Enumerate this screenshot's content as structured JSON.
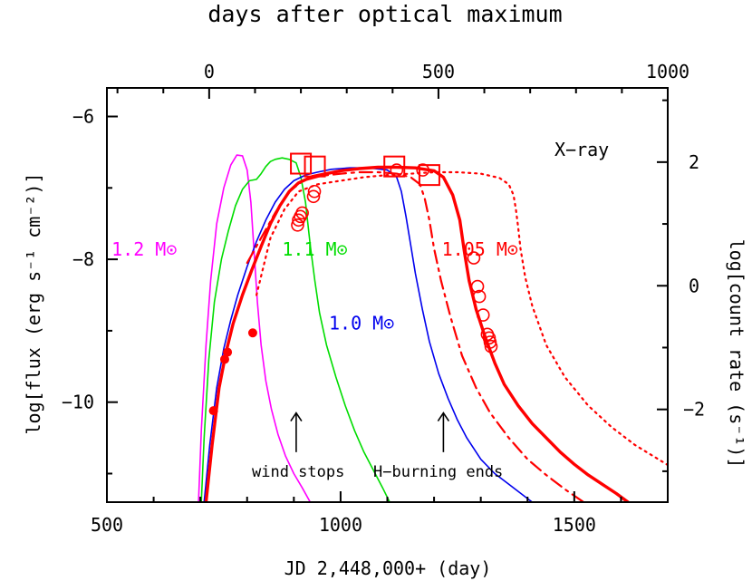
{
  "chart_data": {
    "type": "line",
    "title": "",
    "xlabel": "JD 2,448,000+ (day)",
    "x2label": "days after optical maximum",
    "ylabel": "log[flux (erg s⁻¹ cm⁻²)]",
    "y2label": "log[count rate (s⁻¹)]",
    "xlim": [
      500,
      1700
    ],
    "ylim": [
      -11.4,
      -5.6
    ],
    "x2lim": [
      -223,
      1000
    ],
    "y2lim": [
      -3.5,
      3.2
    ],
    "x_ticks": [
      500,
      1000,
      1500
    ],
    "y_ticks": [
      -6,
      -8,
      -10
    ],
    "x2_ticks": [
      0,
      500,
      1000
    ],
    "y2_ticks": [
      2,
      0,
      -2
    ],
    "x_tick_labels": [
      "500",
      "1000",
      "1500"
    ],
    "y_tick_labels": [
      "−6",
      "−8",
      "−10"
    ],
    "x2_tick_labels": [
      "0",
      "500",
      "1000"
    ],
    "y2_tick_labels": [
      "2",
      "0",
      "−2"
    ],
    "annotations": {
      "xray": "X−ray",
      "wind_stops": "wind stops",
      "h_burning_ends": "H−burning ends"
    },
    "arrows": [
      {
        "x": 905,
        "y_from": -10.7,
        "y_to": -10.15
      },
      {
        "x": 1220,
        "y_from": -10.7,
        "y_to": -10.15
      }
    ],
    "model_labels": [
      {
        "text": "1.2 M⊙",
        "color": "#ff00ff",
        "x": 650,
        "y": -7.95
      },
      {
        "text": "1.1 M⊙",
        "color": "#00dd00",
        "x": 1015,
        "y": -7.95
      },
      {
        "text": "1.0 M⊙",
        "color": "#0000ee",
        "x": 1115,
        "y": -8.98
      },
      {
        "text": "1.05 M⊙",
        "color": "#ff0000",
        "x": 1380,
        "y": -7.95
      }
    ],
    "series": [
      {
        "name": "1.2 M⊙",
        "color": "#ff00ff",
        "width": 1.6,
        "dash": "",
        "x": [
          696,
          702,
          712,
          722,
          735,
          750,
          765,
          778,
          790,
          800,
          808,
          815,
          822,
          830,
          840,
          852,
          866,
          882,
          900,
          918,
          935
        ],
        "y": [
          -11.4,
          -10.4,
          -9.2,
          -8.3,
          -7.5,
          -7.0,
          -6.68,
          -6.54,
          -6.55,
          -6.75,
          -7.2,
          -7.9,
          -8.6,
          -9.2,
          -9.7,
          -10.1,
          -10.45,
          -10.75,
          -11.0,
          -11.2,
          -11.4
        ]
      },
      {
        "name": "1.1 M⊙",
        "color": "#00dd00",
        "width": 1.6,
        "dash": "",
        "x": [
          702,
          708,
          718,
          730,
          745,
          760,
          775,
          790,
          805,
          820,
          830,
          840,
          850,
          860,
          875,
          890,
          905,
          915,
          925,
          935,
          945,
          955,
          970,
          990,
          1010,
          1030,
          1050,
          1070,
          1090,
          1105
        ],
        "y": [
          -11.4,
          -10.5,
          -9.4,
          -8.6,
          -8.0,
          -7.6,
          -7.25,
          -7.02,
          -6.9,
          -6.88,
          -6.8,
          -6.7,
          -6.63,
          -6.6,
          -6.58,
          -6.6,
          -6.65,
          -6.85,
          -7.2,
          -7.8,
          -8.3,
          -8.75,
          -9.2,
          -9.65,
          -10.05,
          -10.4,
          -10.7,
          -10.95,
          -11.2,
          -11.4
        ]
      },
      {
        "name": "1.0 M⊙",
        "color": "#0000ee",
        "width": 1.6,
        "dash": "",
        "x": [
          708,
          720,
          735,
          750,
          765,
          780,
          800,
          820,
          840,
          860,
          880,
          900,
          925,
          950,
          980,
          1020,
          1060,
          1100,
          1120,
          1130,
          1140,
          1150,
          1160,
          1175,
          1190,
          1210,
          1230,
          1250,
          1270,
          1300,
          1330,
          1360,
          1390,
          1410
        ],
        "y": [
          -11.4,
          -10.6,
          -9.8,
          -9.25,
          -8.85,
          -8.5,
          -8.1,
          -7.75,
          -7.45,
          -7.2,
          -7.02,
          -6.9,
          -6.82,
          -6.78,
          -6.74,
          -6.72,
          -6.72,
          -6.75,
          -6.85,
          -7.05,
          -7.4,
          -7.8,
          -8.2,
          -8.7,
          -9.15,
          -9.6,
          -9.95,
          -10.25,
          -10.5,
          -10.8,
          -11.0,
          -11.15,
          -11.3,
          -11.4
        ]
      },
      {
        "name": "1.05 M⊙",
        "color": "#ff0000",
        "width": 3.4,
        "dash": "",
        "x": [
          712,
          725,
          740,
          755,
          770,
          790,
          810,
          830,
          850,
          870,
          890,
          910,
          940,
          970,
          1000,
          1040,
          1080,
          1120,
          1160,
          1200,
          1220,
          1240,
          1255,
          1265,
          1275,
          1290,
          1310,
          1330,
          1350,
          1380,
          1410,
          1440,
          1470,
          1500,
          1530,
          1560,
          1590,
          1615
        ],
        "y": [
          -11.4,
          -10.6,
          -9.8,
          -9.3,
          -8.9,
          -8.5,
          -8.15,
          -7.82,
          -7.5,
          -7.25,
          -7.05,
          -6.93,
          -6.84,
          -6.8,
          -6.76,
          -6.73,
          -6.71,
          -6.71,
          -6.72,
          -6.76,
          -6.85,
          -7.1,
          -7.45,
          -7.9,
          -8.3,
          -8.7,
          -9.1,
          -9.45,
          -9.75,
          -10.05,
          -10.3,
          -10.5,
          -10.7,
          -10.87,
          -11.02,
          -11.15,
          -11.28,
          -11.4
        ]
      },
      {
        "name": "",
        "color": "#ff0000",
        "width": 2.2,
        "dash": "14 6 3 6",
        "x": [
          800,
          830,
          860,
          890,
          920,
          960,
          1000,
          1040,
          1080,
          1120,
          1150,
          1170,
          1180,
          1190,
          1200,
          1215,
          1235,
          1260,
          1290,
          1320,
          1360,
          1400,
          1440,
          1480,
          1520
        ],
        "y": [
          -8.05,
          -7.7,
          -7.35,
          -7.05,
          -6.9,
          -6.83,
          -6.8,
          -6.78,
          -6.78,
          -6.8,
          -6.85,
          -6.95,
          -7.15,
          -7.45,
          -7.85,
          -8.3,
          -8.8,
          -9.35,
          -9.8,
          -10.15,
          -10.5,
          -10.8,
          -11.02,
          -11.22,
          -11.4
        ]
      },
      {
        "name": "",
        "color": "#ff0000",
        "width": 2.2,
        "dash": "2 5",
        "x": [
          820,
          850,
          880,
          910,
          950,
          1000,
          1050,
          1100,
          1150,
          1200,
          1250,
          1300,
          1340,
          1360,
          1370,
          1375,
          1380,
          1385,
          1395,
          1410,
          1440,
          1480,
          1530,
          1580,
          1630,
          1680,
          1705
        ],
        "y": [
          -8.5,
          -7.7,
          -7.3,
          -7.05,
          -6.95,
          -6.9,
          -6.85,
          -6.82,
          -6.8,
          -6.78,
          -6.78,
          -6.8,
          -6.86,
          -6.95,
          -7.1,
          -7.3,
          -7.55,
          -7.85,
          -8.25,
          -8.65,
          -9.2,
          -9.65,
          -10.05,
          -10.35,
          -10.6,
          -10.8,
          -10.9
        ]
      }
    ],
    "points_filled": {
      "color": "#ff0000",
      "x": [
        728,
        752,
        758,
        812
      ],
      "y": [
        -10.12,
        -9.4,
        -9.3,
        -9.03
      ]
    },
    "points_open_circle": {
      "color": "#ff0000",
      "x": [
        908,
        910,
        914,
        918,
        942,
        944,
        1120,
        1176,
        1285,
        1293,
        1297,
        1305,
        1314,
        1318,
        1320,
        1322
      ],
      "y": [
        -7.52,
        -7.45,
        -7.4,
        -7.35,
        -7.12,
        -7.05,
        -6.75,
        -6.75,
        -7.98,
        -8.38,
        -8.52,
        -8.78,
        -9.05,
        -9.1,
        -9.16,
        -9.22
      ]
    },
    "points_open_square": {
      "color": "#ff0000",
      "x": [
        915,
        945,
        1115,
        1190
      ],
      "y": [
        -6.66,
        -6.7,
        -6.7,
        -6.82
      ]
    }
  }
}
